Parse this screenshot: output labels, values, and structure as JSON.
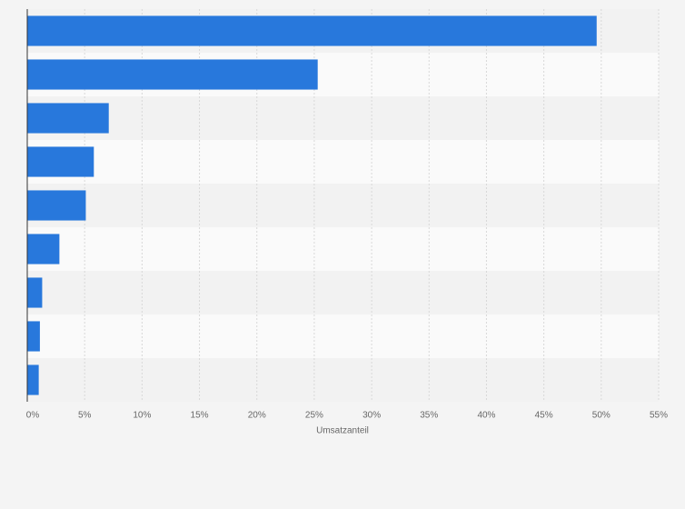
{
  "chart_data": {
    "type": "bar",
    "orientation": "horizontal",
    "categories": [
      null,
      null,
      null,
      null,
      null,
      null,
      null,
      null,
      null
    ],
    "values": [
      49.6,
      25.3,
      7.1,
      5.8,
      5.1,
      2.8,
      1.3,
      1.1,
      1.0
    ],
    "color": "#2878dc",
    "x_label": "Umsatzanteil",
    "xlim": [
      0,
      55
    ],
    "xticks": [
      {
        "value": 0,
        "label": "0%"
      },
      {
        "value": 5,
        "label": "5%"
      },
      {
        "value": 10,
        "label": "10%"
      },
      {
        "value": 15,
        "label": "15%"
      },
      {
        "value": 20,
        "label": "20%"
      },
      {
        "value": 25,
        "label": "25%"
      },
      {
        "value": 30,
        "label": "30%"
      },
      {
        "value": 35,
        "label": "35%"
      },
      {
        "value": 40,
        "label": "40%"
      },
      {
        "value": 45,
        "label": "45%"
      },
      {
        "value": 50,
        "label": "50%"
      },
      {
        "value": 55,
        "label": "55%"
      }
    ],
    "grid": true
  }
}
